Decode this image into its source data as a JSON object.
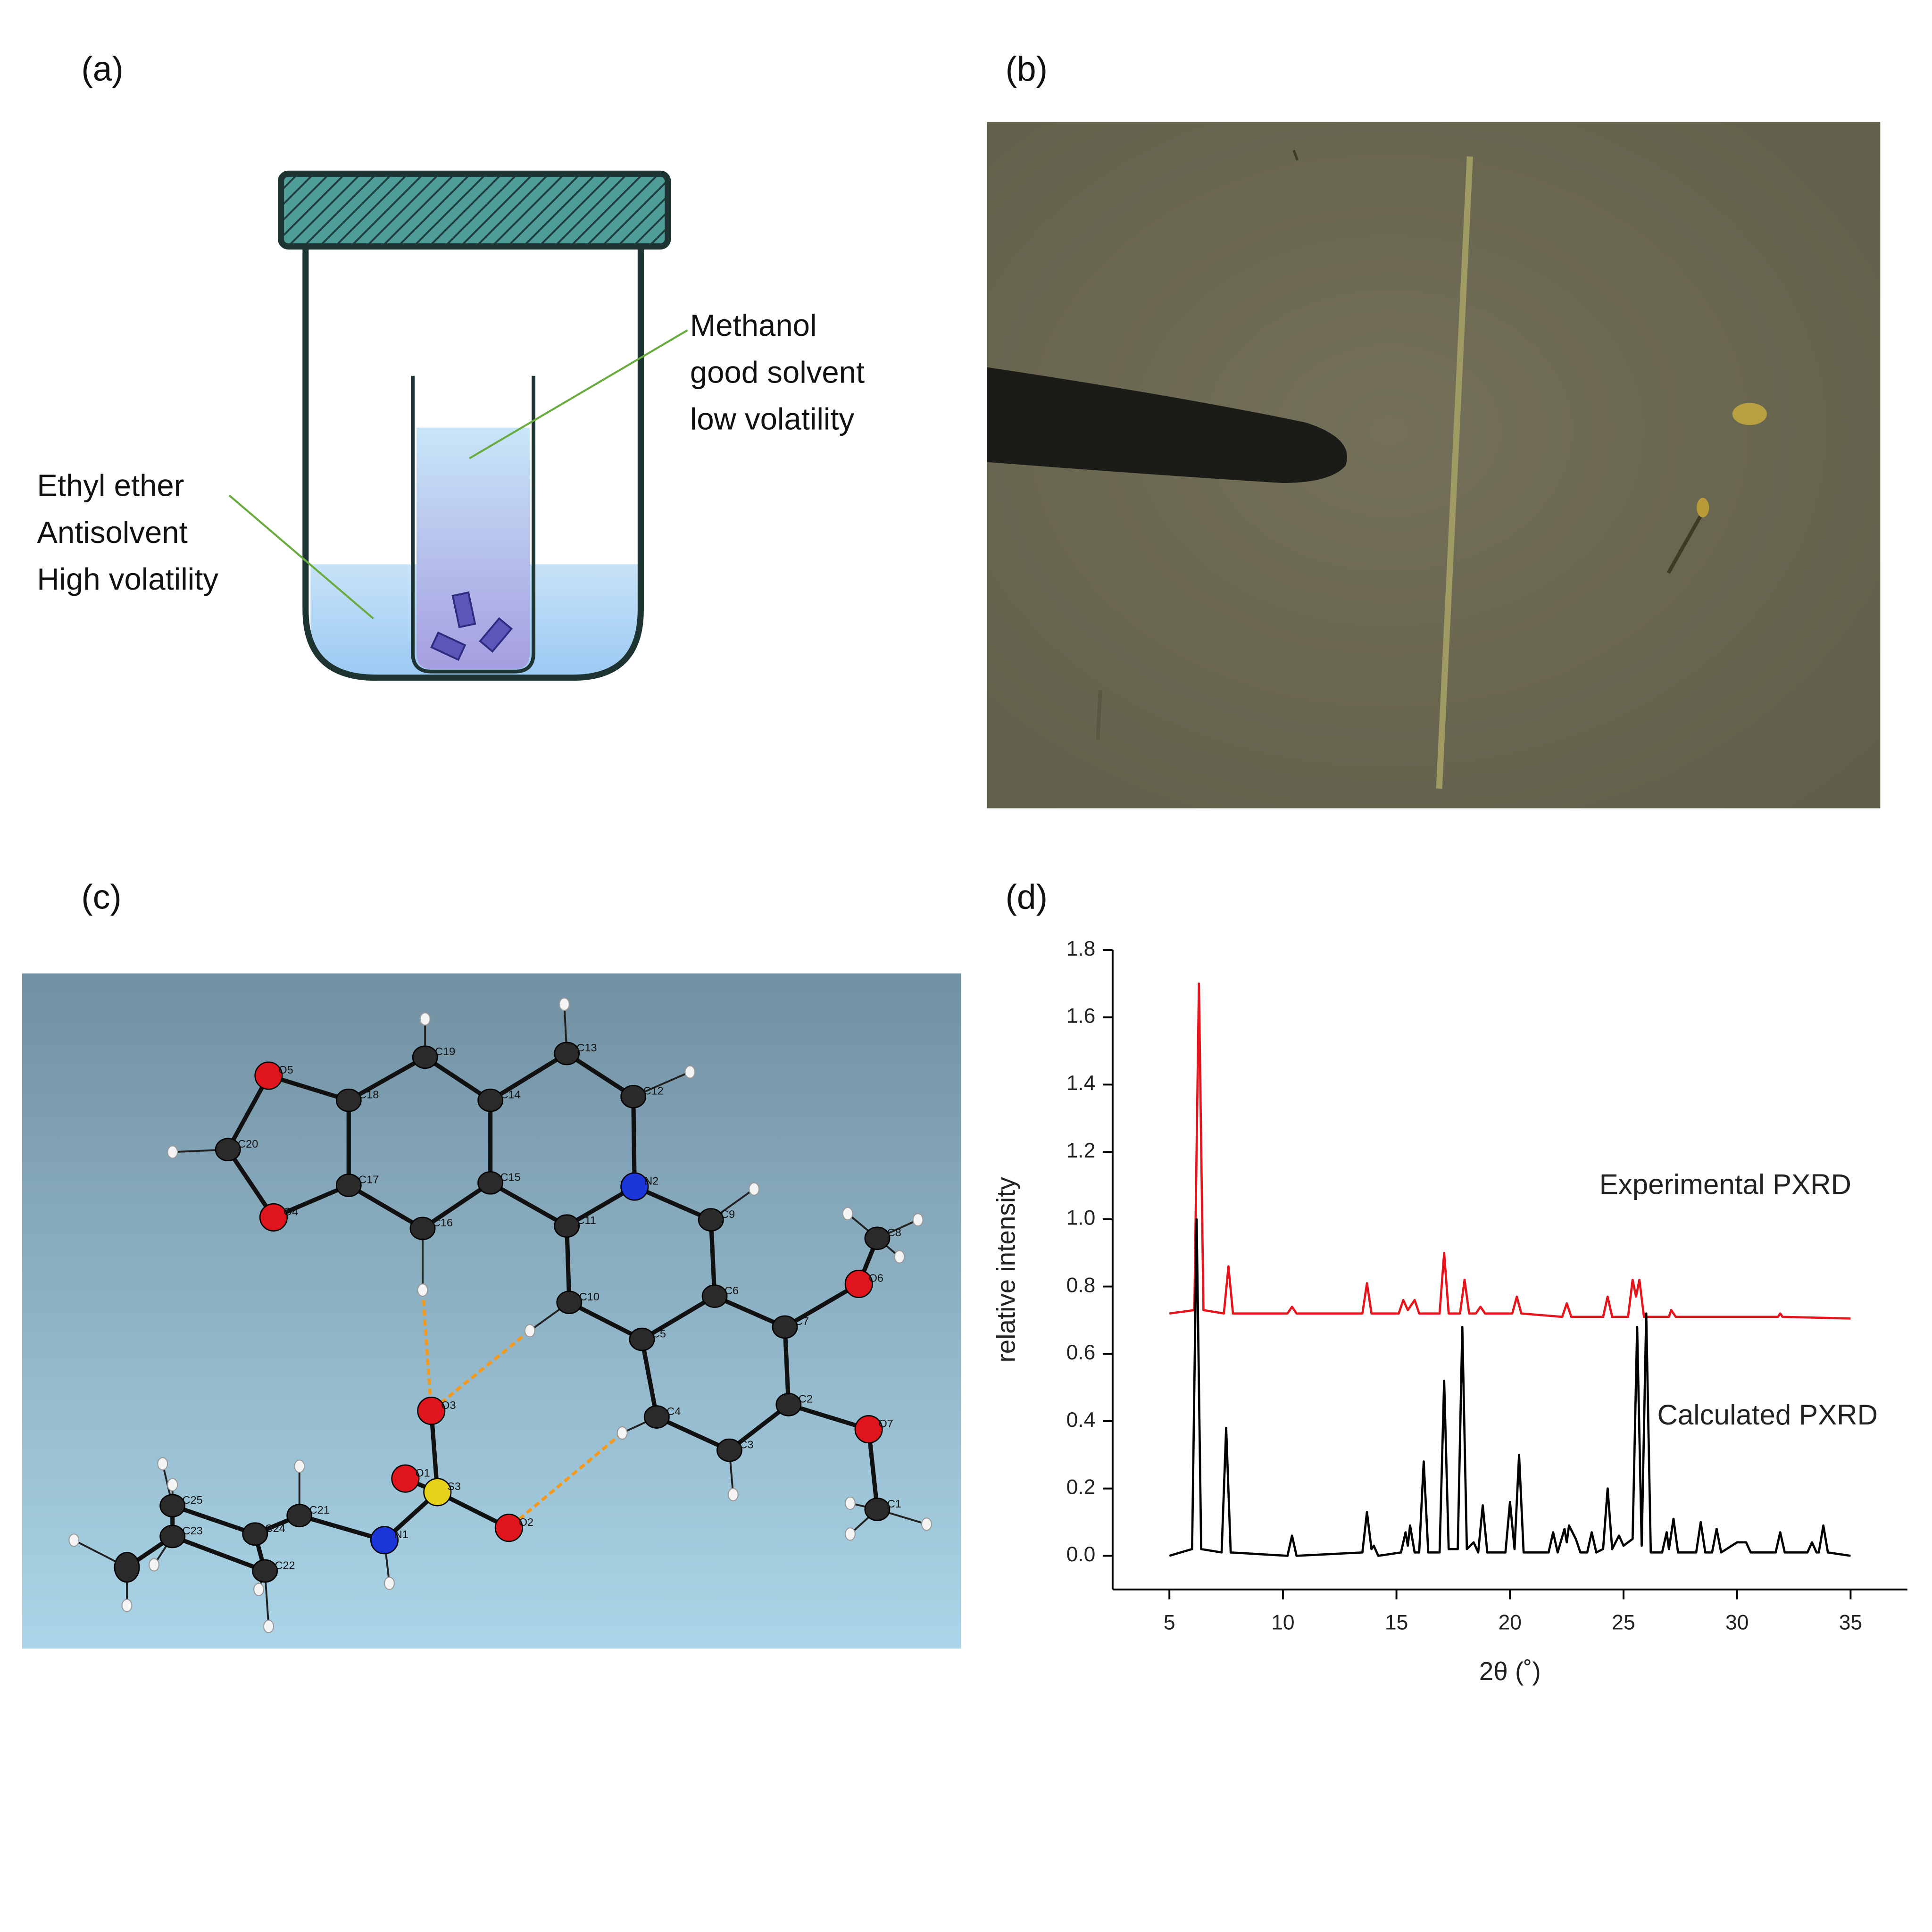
{
  "panel_labels": [
    "(a)",
    "(b)",
    "(c)",
    "(d)"
  ],
  "diagram": {
    "antisolvent": [
      "Ethyl ether",
      "Antisolvent",
      "High volatility"
    ],
    "solvent": [
      "Methanol",
      "good solvent",
      "low volatility"
    ]
  },
  "structure": {
    "atoms": [
      "O5",
      "C19",
      "C13",
      "C18",
      "C14",
      "C12",
      "C20",
      "N2",
      "C17",
      "C15",
      "O4",
      "C16",
      "C11",
      "C9",
      "C8",
      "O6",
      "C10",
      "C6",
      "C7",
      "C5",
      "O3",
      "C4",
      "C2",
      "O7",
      "C3",
      "O1",
      "S3",
      "O2",
      "C21",
      "C1",
      "N1",
      "C25",
      "C24",
      "C23",
      "C22"
    ]
  },
  "chart_data": {
    "type": "line",
    "xlabel": "2θ (˚)",
    "ylabel": "relative intensity",
    "xlim": [
      2.5,
      37.5
    ],
    "ylim": [
      -0.1,
      1.8
    ],
    "xticks": [
      5,
      10,
      15,
      20,
      25,
      30,
      35
    ],
    "yticks": [
      {
        "value": 0,
        "label": "0.0"
      },
      {
        "value": 0.2,
        "label": "0.2"
      },
      {
        "value": 0.4,
        "label": "0.4"
      },
      {
        "value": 0.6,
        "label": "0.6"
      },
      {
        "value": 0.8,
        "label": "0.8"
      },
      {
        "value": 1.0,
        "label": "1.0"
      },
      {
        "value": 1.2,
        "label": "1.2"
      },
      {
        "value": 1.4,
        "label": "1.4"
      },
      {
        "value": 1.6,
        "label": "1.6"
      },
      {
        "value": 1.8,
        "label": "1.8"
      }
    ],
    "series": [
      {
        "name": "Experimental PXRD",
        "color": "#e8141c",
        "x": [
          5,
          6.1,
          6.3,
          6.5,
          7.4,
          7.6,
          7.8,
          10.2,
          10.4,
          10.6,
          13.5,
          13.7,
          13.9,
          15.1,
          15.3,
          15.5,
          15.8,
          16.0,
          16.9,
          17.1,
          17.3,
          17.8,
          18.0,
          18.2,
          18.5,
          18.7,
          18.9,
          20.1,
          20.3,
          20.5,
          22.3,
          22.5,
          22.7,
          24.1,
          24.3,
          24.5,
          25.2,
          25.4,
          25.55,
          25.7,
          25.9,
          27.0,
          27.1,
          27.3,
          31.8,
          31.9,
          32.0,
          35
        ],
        "values": [
          0.72,
          0.73,
          1.7,
          0.73,
          0.72,
          0.86,
          0.72,
          0.72,
          0.74,
          0.72,
          0.72,
          0.81,
          0.72,
          0.72,
          0.76,
          0.73,
          0.76,
          0.72,
          0.72,
          0.9,
          0.72,
          0.72,
          0.82,
          0.72,
          0.72,
          0.74,
          0.72,
          0.72,
          0.77,
          0.72,
          0.71,
          0.75,
          0.71,
          0.71,
          0.77,
          0.71,
          0.71,
          0.82,
          0.77,
          0.82,
          0.71,
          0.71,
          0.73,
          0.71,
          0.71,
          0.72,
          0.71,
          0.705
        ]
      },
      {
        "name": "Calculated PXRD",
        "color": "#000000",
        "x": [
          5,
          6.0,
          6.2,
          6.4,
          7.3,
          7.5,
          7.7,
          10.2,
          10.4,
          10.6,
          13.5,
          13.7,
          13.9,
          14.0,
          14.2,
          15.2,
          15.4,
          15.5,
          15.6,
          15.8,
          16.0,
          16.2,
          16.4,
          16.9,
          17.1,
          17.3,
          17.7,
          17.9,
          18.1,
          18.4,
          18.6,
          18.8,
          19.0,
          19.8,
          20.0,
          20.2,
          20.4,
          20.6,
          21.7,
          21.9,
          22.1,
          22.4,
          22.5,
          22.6,
          22.9,
          23.1,
          23.4,
          23.6,
          23.8,
          24.1,
          24.3,
          24.5,
          24.8,
          25.0,
          25.4,
          25.6,
          25.8,
          26.0,
          26.2,
          26.7,
          26.9,
          27.0,
          27.2,
          27.4,
          28.2,
          28.4,
          28.6,
          28.9,
          29.1,
          29.3,
          30.0,
          30.4,
          30.6,
          31.7,
          31.9,
          32.1,
          33.1,
          33.3,
          33.5,
          33.6,
          33.8,
          34.0,
          35
        ],
        "values": [
          0,
          0.02,
          1.0,
          0.02,
          0.01,
          0.38,
          0.01,
          0,
          0.06,
          0,
          0.01,
          0.13,
          0.02,
          0.03,
          0,
          0.01,
          0.07,
          0.03,
          0.09,
          0.01,
          0.01,
          0.28,
          0.01,
          0.01,
          0.52,
          0.02,
          0.02,
          0.68,
          0.02,
          0.04,
          0.01,
          0.15,
          0.01,
          0.01,
          0.16,
          0.02,
          0.3,
          0.01,
          0.01,
          0.07,
          0.01,
          0.08,
          0.04,
          0.09,
          0.05,
          0.01,
          0.01,
          0.07,
          0.01,
          0.02,
          0.2,
          0.02,
          0.06,
          0.03,
          0.05,
          0.68,
          0.03,
          0.72,
          0.01,
          0.01,
          0.07,
          0.02,
          0.11,
          0.01,
          0.01,
          0.1,
          0.01,
          0.01,
          0.08,
          0.01,
          0.04,
          0.04,
          0.01,
          0.01,
          0.07,
          0.01,
          0.01,
          0.04,
          0.01,
          0.01,
          0.09,
          0.01,
          0
        ]
      }
    ]
  }
}
